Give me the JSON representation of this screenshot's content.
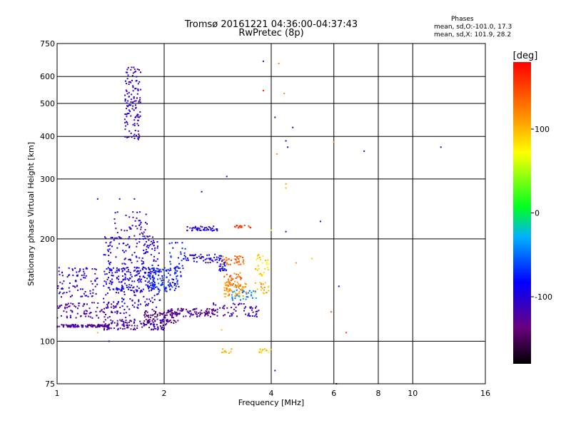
{
  "title_line1": "Tromsø 20161221 04:36:00-04:37:43",
  "title_line2": "RwPretec (8p)",
  "info": {
    "heading": "Phases",
    "line1": "mean, sd,O:-101.0, 17.3",
    "line2": "mean, sd,X: 101.9, 28.2"
  },
  "colorbar": {
    "label": "[deg]",
    "ticks": [
      "100",
      "0",
      "-100"
    ],
    "range": [
      -180,
      180
    ]
  },
  "chart_data": {
    "type": "scatter",
    "xlabel": "Frequency [MHz]",
    "ylabel": "Stationary phase Virtual Height [km]",
    "x_scale": "log",
    "y_scale": "log",
    "xlim": [
      1,
      16
    ],
    "ylim": [
      75,
      750
    ],
    "x_ticks": [
      1,
      2,
      4,
      6,
      8,
      10,
      16
    ],
    "x_tick_labels": [
      "1",
      "2",
      "4",
      "6",
      "8",
      "10",
      "16"
    ],
    "y_ticks": [
      75,
      100,
      200,
      300,
      400,
      500,
      600,
      750
    ],
    "y_tick_labels": [
      "75",
      "100",
      "200",
      "300",
      "400",
      "500",
      "600",
      "750"
    ],
    "grid": true,
    "color_by": "phase_deg",
    "color_scale": "rainbow",
    "point_groups": [
      {
        "x": [
          1.0,
          1.4
        ],
        "y": [
          110,
          112
        ],
        "phase": -125,
        "n": 110
      },
      {
        "x": [
          1.35,
          2.05
        ],
        "y": [
          108,
          116
        ],
        "phase": -120,
        "n": 130
      },
      {
        "x": [
          1.75,
          2.2
        ],
        "y": [
          113,
          124
        ],
        "phase": -135,
        "n": 80
      },
      {
        "x": [
          2.05,
          2.8
        ],
        "y": [
          118,
          125
        ],
        "phase": -130,
        "n": 90
      },
      {
        "x": [
          1.0,
          1.6
        ],
        "y": [
          117,
          130
        ],
        "phase": -120,
        "n": 110
      },
      {
        "x": [
          1.0,
          1.3
        ],
        "y": [
          135,
          165
        ],
        "phase": -105,
        "n": 90
      },
      {
        "x": [
          1.35,
          1.95
        ],
        "y": [
          125,
          205
        ],
        "phase": -100,
        "n": 260
      },
      {
        "x": [
          1.35,
          1.9
        ],
        "y": [
          140,
          165
        ],
        "phase": -95,
        "n": 110
      },
      {
        "x": [
          1.45,
          1.8
        ],
        "y": [
          205,
          242
        ],
        "phase": -110,
        "n": 40
      },
      {
        "x": [
          1.8,
          2.2
        ],
        "y": [
          140,
          165
        ],
        "phase": -75,
        "n": 110
      },
      {
        "x": [
          2.05,
          2.3
        ],
        "y": [
          155,
          195
        ],
        "phase": -80,
        "n": 40
      },
      {
        "x": [
          2.3,
          2.9
        ],
        "y": [
          170,
          180
        ],
        "phase": -95,
        "n": 50
      },
      {
        "x": [
          2.3,
          2.85
        ],
        "y": [
          211,
          218
        ],
        "phase": -100,
        "n": 45
      },
      {
        "x": [
          2.85,
          3.0
        ],
        "y": [
          160,
          175
        ],
        "phase": -85,
        "n": 25
      },
      {
        "x": [
          2.9,
          3.35
        ],
        "y": [
          168,
          178
        ],
        "phase": 135,
        "n": 40
      },
      {
        "x": [
          2.95,
          3.3
        ],
        "y": [
          145,
          160
        ],
        "phase": 130,
        "n": 45
      },
      {
        "x": [
          2.95,
          3.4
        ],
        "y": [
          135,
          148
        ],
        "phase": 115,
        "n": 55
      },
      {
        "x": [
          3.1,
          3.7
        ],
        "y": [
          132,
          142
        ],
        "phase": -40,
        "n": 30
      },
      {
        "x": [
          3.6,
          3.95
        ],
        "y": [
          155,
          180
        ],
        "phase": 90,
        "n": 30
      },
      {
        "x": [
          3.6,
          3.95
        ],
        "y": [
          138,
          150
        ],
        "phase": 100,
        "n": 20
      },
      {
        "x": [
          2.75,
          3.7
        ],
        "y": [
          118,
          130
        ],
        "phase": -115,
        "n": 60
      },
      {
        "x": [
          3.15,
          3.5
        ],
        "y": [
          215,
          220
        ],
        "phase": 155,
        "n": 15
      },
      {
        "x": [
          3.7,
          4.0
        ],
        "y": [
          92,
          95
        ],
        "phase": 90,
        "n": 12
      },
      {
        "x": [
          2.9,
          3.1
        ],
        "y": [
          92,
          95
        ],
        "phase": 100,
        "n": 10
      },
      {
        "x": [
          1.55,
          1.72
        ],
        "y": [
          390,
          650
        ],
        "phase": -110,
        "n": 130
      }
    ],
    "isolated_points": [
      {
        "x": 1.5,
        "y": 262,
        "phase": -110
      },
      {
        "x": 1.65,
        "y": 262,
        "phase": -115
      },
      {
        "x": 1.3,
        "y": 262,
        "phase": -100
      },
      {
        "x": 2.55,
        "y": 275,
        "phase": -110
      },
      {
        "x": 3.0,
        "y": 305,
        "phase": -120
      },
      {
        "x": 3.8,
        "y": 665,
        "phase": -110
      },
      {
        "x": 4.2,
        "y": 655,
        "phase": 120
      },
      {
        "x": 3.8,
        "y": 545,
        "phase": 170
      },
      {
        "x": 4.35,
        "y": 535,
        "phase": 110
      },
      {
        "x": 4.1,
        "y": 455,
        "phase": -110
      },
      {
        "x": 4.6,
        "y": 425,
        "phase": -115
      },
      {
        "x": 4.4,
        "y": 388,
        "phase": -100
      },
      {
        "x": 4.45,
        "y": 372,
        "phase": -100
      },
      {
        "x": 4.15,
        "y": 355,
        "phase": 110
      },
      {
        "x": 4.4,
        "y": 290,
        "phase": 110
      },
      {
        "x": 4.4,
        "y": 282,
        "phase": 100
      },
      {
        "x": 6.0,
        "y": 385,
        "phase": 110
      },
      {
        "x": 7.3,
        "y": 362,
        "phase": -100
      },
      {
        "x": 12.0,
        "y": 372,
        "phase": -105
      },
      {
        "x": 5.5,
        "y": 225,
        "phase": -115
      },
      {
        "x": 4.0,
        "y": 212,
        "phase": 70
      },
      {
        "x": 4.4,
        "y": 210,
        "phase": -110
      },
      {
        "x": 4.7,
        "y": 170,
        "phase": 110
      },
      {
        "x": 5.2,
        "y": 175,
        "phase": 95
      },
      {
        "x": 6.2,
        "y": 145,
        "phase": -100
      },
      {
        "x": 5.9,
        "y": 122,
        "phase": 140
      },
      {
        "x": 6.5,
        "y": 106,
        "phase": 150
      },
      {
        "x": 4.1,
        "y": 82,
        "phase": -110
      },
      {
        "x": 6.1,
        "y": 75,
        "phase": -120
      },
      {
        "x": 2.9,
        "y": 108,
        "phase": 95
      },
      {
        "x": 1.4,
        "y": 100,
        "phase": -115
      },
      {
        "x": 1.3,
        "y": 106,
        "phase": 100
      }
    ]
  }
}
